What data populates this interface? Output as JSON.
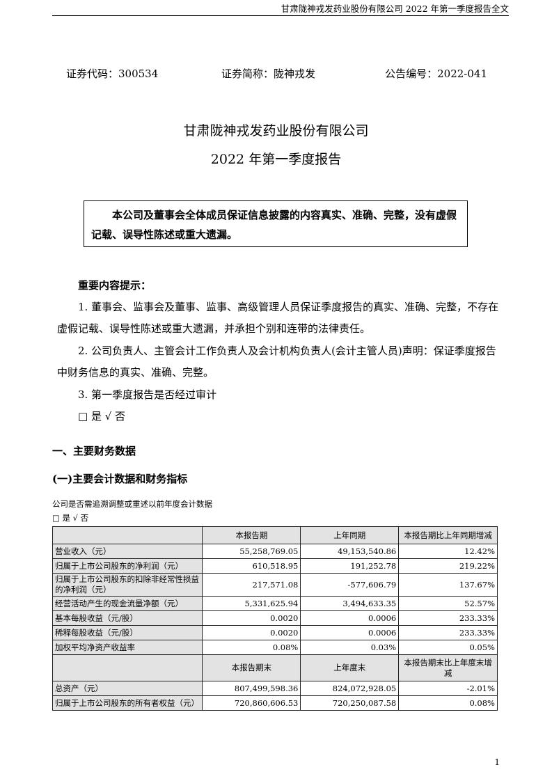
{
  "header": "甘肃陇神戎发药业股份有限公司 2022 年第一季度报告全文",
  "meta": {
    "code": "证券代码：300534",
    "short": "证券简称：陇神戎发",
    "notice": "公告编号：2022-041"
  },
  "title": {
    "company": "甘肃陇神戎发药业股份有限公司",
    "report": "2022 年第一季度报告"
  },
  "statement": "本公司及董事会全体成员保证信息披露的内容真实、准确、完整，没有虚假记载、误导性陈述或重大遗漏。",
  "important": {
    "heading": "重要内容提示：",
    "item1": "1. 董事会、监事会及董事、监事、高级管理人员保证季度报告的真实、准确、完整，不存在虚假记载、误导性陈述或重大遗漏，并承担个别和连带的法律责任。",
    "item2": "2. 公司负责人、主管会计工作负责人及会计机构负责人(会计主管人员)声明：保证季度报告中财务信息的真实、准确、完整。",
    "item3": "3. 第一季度报告是否经过审计",
    "item3_answer": "□ 是 √ 否"
  },
  "section1": "一、主要财务数据",
  "subsection1": "(一)主要会计数据和财务指标",
  "restate_q": "公司是否需追溯调整或重述以前年度会计数据",
  "restate_a": "□ 是 √ 否",
  "table": {
    "header1": [
      "",
      "本报告期",
      "上年同期",
      "本报告期比上年同期增减"
    ],
    "rows1": [
      [
        "营业收入（元）",
        "55,258,769.05",
        "49,153,540.86",
        "12.42%"
      ],
      [
        "归属于上市公司股东的净利润（元）",
        "610,518.95",
        "191,252.78",
        "219.22%"
      ],
      [
        "归属于上市公司股东的扣除非经常性损益的净利润（元）",
        "217,571.08",
        "-577,606.79",
        "137.67%"
      ],
      [
        "经营活动产生的现金流量净额（元）",
        "5,331,625.94",
        "3,494,633.35",
        "52.57%"
      ],
      [
        "基本每股收益（元/股）",
        "0.0020",
        "0.0006",
        "233.33%"
      ],
      [
        "稀释每股收益（元/股）",
        "0.0020",
        "0.0006",
        "233.33%"
      ],
      [
        "加权平均净资产收益率",
        "0.08%",
        "0.03%",
        "0.05%"
      ]
    ],
    "header2": [
      "",
      "本报告期末",
      "上年度末",
      "本报告期末比上年度末增减"
    ],
    "rows2": [
      [
        "总资产（元）",
        "807,499,598.36",
        "824,072,928.05",
        "-2.01%"
      ],
      [
        "归属于上市公司股东的所有者权益（元）",
        "720,860,606.53",
        "720,250,087.58",
        "0.08%"
      ]
    ]
  },
  "page_number": "1"
}
